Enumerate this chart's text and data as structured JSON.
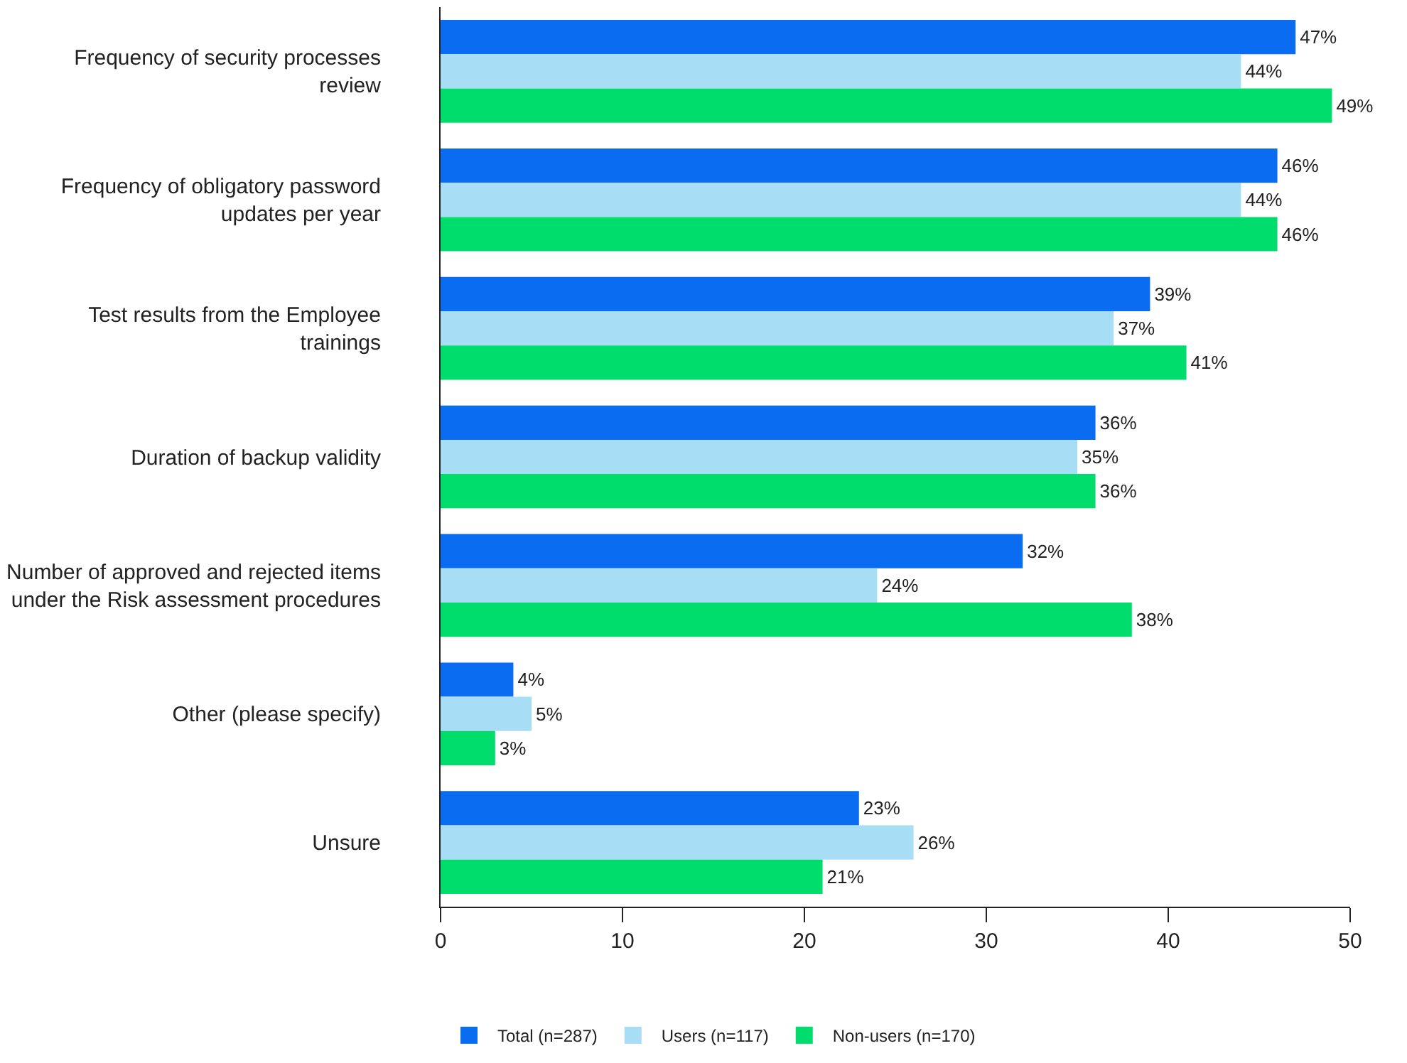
{
  "chart_data": {
    "type": "bar",
    "orientation": "horizontal",
    "categories": [
      "Frequency of security processes review",
      "Frequency of obligatory password updates per year",
      "Test results from the Employee trainings",
      "Duration of backup validity",
      "Number of approved and rejected items under the Risk assessment procedures",
      "Other (please specify)",
      "Unsure"
    ],
    "series": [
      {
        "name": "Total (n=287)",
        "color": "#0a6cf0",
        "values": [
          47,
          46,
          39,
          36,
          32,
          4,
          23
        ],
        "value_labels": [
          "47%",
          "46%",
          "39%",
          "36%",
          "32%",
          "4%",
          "23%"
        ]
      },
      {
        "name": "Users (n=117)",
        "color": "#a8def5",
        "values": [
          44,
          44,
          37,
          35,
          24,
          5,
          26
        ],
        "value_labels": [
          "44%",
          "44%",
          "37%",
          "35%",
          "24%",
          "5%",
          "26%"
        ]
      },
      {
        "name": "Non-users (n=170)",
        "color": "#00dd6c",
        "values": [
          49,
          46,
          41,
          36,
          38,
          3,
          21
        ],
        "value_labels": [
          "49%",
          "46%",
          "41%",
          "36%",
          "38%",
          "3%",
          "21%"
        ]
      }
    ],
    "xlim": [
      0,
      50
    ],
    "xticks": [
      0,
      10,
      20,
      30,
      40,
      50
    ],
    "legend": "bottom left"
  }
}
